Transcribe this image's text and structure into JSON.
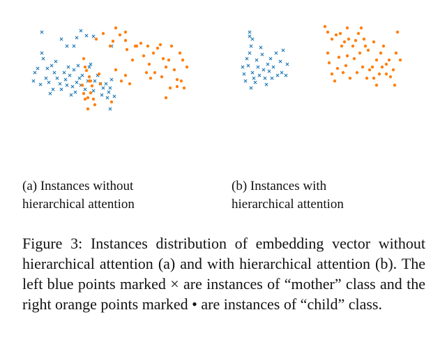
{
  "colors": {
    "mother": "#1f77b4",
    "child": "#ff7f0e"
  },
  "chart_data": [
    {
      "type": "scatter",
      "subcaption_line1": "(a) Instances without",
      "subcaption_line2": "hierarchical attention",
      "xlim": [
        0,
        240
      ],
      "ylim": [
        0,
        180
      ],
      "series": [
        {
          "name": "mother",
          "marker": "x",
          "color": "#1f77b4",
          "points": [
            [
              8,
              100
            ],
            [
              10,
              112
            ],
            [
              14,
              118
            ],
            [
              18,
              95
            ],
            [
              20,
              140
            ],
            [
              22,
              132
            ],
            [
              26,
              104
            ],
            [
              28,
              118
            ],
            [
              30,
              98
            ],
            [
              32,
              82
            ],
            [
              34,
              122
            ],
            [
              36,
              88
            ],
            [
              38,
              112
            ],
            [
              40,
              128
            ],
            [
              42,
              104
            ],
            [
              46,
              96
            ],
            [
              48,
              88
            ],
            [
              52,
              112
            ],
            [
              54,
              102
            ],
            [
              56,
              94
            ],
            [
              58,
              120
            ],
            [
              60,
              108
            ],
            [
              62,
              80
            ],
            [
              64,
              92
            ],
            [
              66,
              116
            ],
            [
              68,
              84
            ],
            [
              70,
              98
            ],
            [
              72,
              122
            ],
            [
              74,
              104
            ],
            [
              76,
              94
            ],
            [
              78,
              108
            ],
            [
              82,
              88
            ],
            [
              86,
              100
            ],
            [
              88,
              120
            ],
            [
              90,
              124
            ],
            [
              94,
              86
            ],
            [
              96,
              100
            ],
            [
              100,
              108
            ],
            [
              104,
              96
            ],
            [
              106,
              80
            ],
            [
              108,
              90
            ],
            [
              112,
              96
            ],
            [
              114,
              76
            ],
            [
              116,
              84
            ],
            [
              118,
              90
            ],
            [
              120,
              102
            ],
            [
              20,
              170
            ],
            [
              48,
              160
            ],
            [
              56,
              150
            ],
            [
              66,
              150
            ],
            [
              70,
              162
            ],
            [
              76,
              172
            ],
            [
              84,
              165
            ],
            [
              94,
              164
            ],
            [
              120,
              150
            ],
            [
              118,
              60
            ],
            [
              124,
              78
            ]
          ]
        }
      ]
    },
    {
      "type": "scatter",
      "subcaption_line1": "(b) Instances with",
      "subcaption_line2": "hierarchical attention",
      "xlim": [
        0,
        240
      ],
      "ylim": [
        0,
        180
      ],
      "series": [
        {
          "name": "mother",
          "marker": "x",
          "color": "#1f77b4",
          "points": [
            [
              8,
              120
            ],
            [
              10,
              110
            ],
            [
              12,
              100
            ],
            [
              14,
              132
            ],
            [
              16,
              122
            ],
            [
              18,
              140
            ],
            [
              18,
              164
            ],
            [
              20,
              90
            ],
            [
              22,
              112
            ],
            [
              24,
              104
            ],
            [
              26,
              98
            ],
            [
              28,
              130
            ],
            [
              30,
              120
            ],
            [
              32,
              108
            ],
            [
              34,
              148
            ],
            [
              36,
              138
            ],
            [
              38,
              116
            ],
            [
              40,
              104
            ],
            [
              42,
              95
            ],
            [
              44,
              124
            ],
            [
              46,
              114
            ],
            [
              48,
              132
            ],
            [
              50,
              104
            ],
            [
              52,
              120
            ],
            [
              56,
              140
            ],
            [
              58,
              108
            ],
            [
              62,
              128
            ],
            [
              64,
              112
            ],
            [
              66,
              144
            ],
            [
              70,
              108
            ],
            [
              72,
              124
            ],
            [
              20,
              150
            ],
            [
              22,
              160
            ],
            [
              18,
              170
            ]
          ]
        }
      ]
    }
  ],
  "caption": {
    "text": "Figure 3: Instances distribution of embedding vector without hierarchical attention (a) and with hierarchical attention (b). The left blue points marked × are instances of “mother” class and the right orange points marked • are instances of “child” class."
  }
}
